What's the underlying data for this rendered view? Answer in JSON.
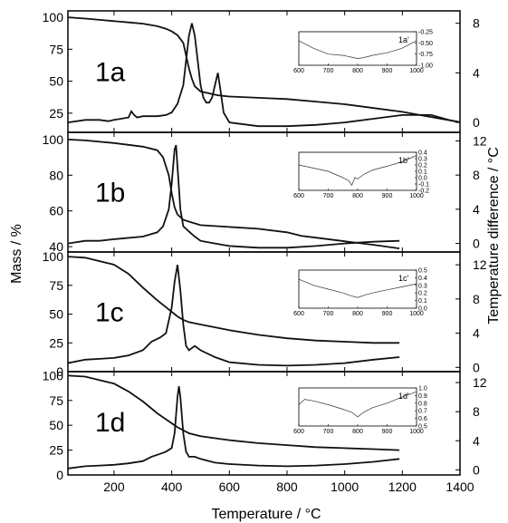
{
  "chart_data": {
    "type": "line",
    "x_axis": {
      "label": "Temperature / °C",
      "range": [
        40,
        1400
      ],
      "ticks": [
        "200",
        "400",
        "600",
        "800",
        "1000",
        "1200",
        "1400"
      ],
      "tick_values": [
        200,
        400,
        600,
        800,
        1000,
        1200,
        1400
      ]
    },
    "y_left_label": "Mass / %",
    "y_right_label": "Temperature difference / °C",
    "panels": [
      {
        "label": "1a",
        "inset_label": "1a'",
        "left_ylim": [
          10,
          105
        ],
        "left_ticks": [
          100,
          75,
          50,
          25
        ],
        "left_tick_labels": [
          "100",
          "75",
          "50",
          "25"
        ],
        "right_ylim": [
          -0.8,
          9
        ],
        "right_ticks": [
          8,
          4,
          0
        ],
        "right_tick_labels": [
          "8",
          "4",
          "0"
        ],
        "mass": {
          "x": [
            40,
            100,
            150,
            200,
            250,
            300,
            350,
            380,
            400,
            420,
            440,
            460,
            470,
            480,
            500,
            540,
            560,
            580,
            600,
            700,
            800,
            900,
            1000,
            1100,
            1200,
            1300,
            1400
          ],
          "y": [
            100,
            99,
            98,
            97,
            96,
            95,
            93,
            91,
            89,
            86,
            80,
            60,
            52,
            46,
            42,
            40,
            39,
            38.5,
            38,
            37,
            36,
            34,
            32,
            29,
            26,
            22,
            18
          ]
        },
        "dta": {
          "x": [
            40,
            100,
            150,
            180,
            200,
            250,
            260,
            270,
            280,
            300,
            350,
            380,
            400,
            420,
            440,
            450,
            460,
            470,
            480,
            490,
            500,
            510,
            520,
            530,
            540,
            550,
            560,
            570,
            580,
            600,
            700,
            800,
            900,
            1000,
            1100,
            1200,
            1300,
            1360,
            1400
          ],
          "y": [
            0,
            0.2,
            0.2,
            0.1,
            0.2,
            0.4,
            0.9,
            0.6,
            0.4,
            0.5,
            0.5,
            0.6,
            0.8,
            1.5,
            3,
            5,
            7,
            8,
            7,
            5,
            3,
            2,
            1.6,
            1.6,
            2,
            3,
            4,
            2.5,
            0.8,
            0,
            -0.3,
            -0.3,
            -0.2,
            0,
            0.3,
            0.6,
            0.6,
            0.2,
            0
          ]
        },
        "inset": {
          "xlim": [
            600,
            1000
          ],
          "ylim": [
            -1.0,
            -0.25
          ],
          "x_ticks": [
            "600",
            "700",
            "800",
            "900",
            "1000"
          ],
          "x_tick_values": [
            600,
            700,
            800,
            900,
            1000
          ],
          "y_ticks": [
            "-0.25",
            "-0.50",
            "-0.75",
            "-1.00"
          ],
          "y_tick_values": [
            -0.25,
            -0.5,
            -0.75,
            -1.0
          ],
          "x": [
            600,
            650,
            700,
            750,
            780,
            800,
            820,
            850,
            900,
            950,
            1000
          ],
          "y": [
            -0.45,
            -0.62,
            -0.75,
            -0.78,
            -0.82,
            -0.85,
            -0.83,
            -0.78,
            -0.72,
            -0.62,
            -0.45
          ]
        }
      },
      {
        "label": "1b",
        "inset_label": "1b'",
        "left_ylim": [
          37,
          104
        ],
        "left_ticks": [
          100,
          80,
          60,
          40
        ],
        "left_tick_labels": [
          "100",
          "80",
          "60",
          "40"
        ],
        "right_ylim": [
          -1,
          13
        ],
        "right_ticks": [
          12,
          8,
          4,
          0
        ],
        "right_tick_labels": [
          "12",
          "8",
          "4",
          "0"
        ],
        "mass": {
          "x": [
            40,
            100,
            200,
            300,
            350,
            370,
            390,
            400,
            410,
            420,
            440,
            460,
            500,
            600,
            700,
            800,
            850,
            900,
            1000,
            1100,
            1190
          ],
          "y": [
            100,
            99.5,
            98,
            96,
            94,
            90,
            80,
            70,
            62,
            58,
            55,
            54,
            52,
            51,
            50,
            48,
            46,
            45,
            43,
            41,
            39
          ]
        },
        "dta": {
          "x": [
            40,
            100,
            150,
            200,
            300,
            350,
            370,
            390,
            400,
            410,
            415,
            420,
            430,
            440,
            460,
            480,
            500,
            550,
            600,
            700,
            800,
            900,
            1000,
            1100,
            1190
          ],
          "y": [
            0,
            0.3,
            0.3,
            0.5,
            0.8,
            1.3,
            2,
            4,
            7,
            11,
            11.5,
            9,
            4,
            2,
            1.4,
            0.8,
            0.3,
            0,
            -0.3,
            -0.5,
            -0.5,
            -0.3,
            0,
            0.2,
            0.3
          ]
        },
        "inset": {
          "xlim": [
            600,
            1000
          ],
          "ylim": [
            -0.2,
            0.4
          ],
          "x_ticks": [
            "600",
            "700",
            "800",
            "900",
            "1000"
          ],
          "x_tick_values": [
            600,
            700,
            800,
            900,
            1000
          ],
          "y_ticks": [
            "0.4",
            "0.3",
            "0.2",
            "0.1",
            "0.0",
            "-0.1",
            "-0.2"
          ],
          "y_tick_values": [
            0.4,
            0.3,
            0.2,
            0.1,
            0.0,
            -0.1,
            -0.2
          ],
          "x": [
            600,
            650,
            700,
            750,
            770,
            780,
            790,
            800,
            820,
            850,
            900,
            950,
            1000
          ],
          "y": [
            0.2,
            0.15,
            0.1,
            0.0,
            -0.05,
            -0.12,
            0.0,
            -0.02,
            0.05,
            0.12,
            0.18,
            0.25,
            0.35
          ]
        }
      },
      {
        "label": "1c",
        "inset_label": "1c'",
        "left_ylim": [
          0,
          104
        ],
        "left_ticks": [
          100,
          75,
          50,
          25,
          0
        ],
        "left_tick_labels": [
          "100",
          "75",
          "50",
          "25",
          "0"
        ],
        "right_ylim": [
          -0.5,
          13.5
        ],
        "right_ticks": [
          12,
          8,
          4,
          0
        ],
        "right_tick_labels": [
          "12",
          "8",
          "4",
          "0"
        ],
        "mass": {
          "x": [
            40,
            100,
            200,
            250,
            300,
            350,
            380,
            400,
            420,
            440,
            460,
            500,
            600,
            700,
            800,
            900,
            1000,
            1100,
            1190
          ],
          "y": [
            100,
            99,
            93,
            85,
            73,
            62,
            56,
            52,
            48,
            45,
            43,
            41,
            36,
            32,
            29,
            27,
            26,
            25,
            25
          ]
        },
        "dta": {
          "x": [
            40,
            100,
            150,
            200,
            250,
            300,
            330,
            360,
            380,
            400,
            410,
            420,
            430,
            440,
            450,
            460,
            480,
            500,
            550,
            600,
            700,
            800,
            900,
            1000,
            1100,
            1190
          ],
          "y": [
            0.5,
            0.9,
            1,
            1.1,
            1.4,
            2,
            3,
            3.5,
            4,
            7,
            10,
            12,
            9,
            5,
            2.5,
            2,
            2.5,
            2,
            1.2,
            0.6,
            0.3,
            0.2,
            0.3,
            0.5,
            0.9,
            1.2
          ]
        },
        "inset": {
          "xlim": [
            600,
            1000
          ],
          "ylim": [
            0.0,
            0.5
          ],
          "x_ticks": [
            "600",
            "700",
            "800",
            "900",
            "1000"
          ],
          "x_tick_values": [
            600,
            700,
            800,
            900,
            1000
          ],
          "y_ticks": [
            "0.5",
            "0.4",
            "0.3",
            "0.2",
            "0.1",
            "0.0"
          ],
          "y_tick_values": [
            0.5,
            0.4,
            0.3,
            0.2,
            0.1,
            0.0
          ],
          "x": [
            600,
            650,
            700,
            750,
            780,
            800,
            830,
            850,
            900,
            950,
            1000
          ],
          "y": [
            0.38,
            0.3,
            0.25,
            0.2,
            0.16,
            0.14,
            0.18,
            0.2,
            0.24,
            0.28,
            0.32
          ]
        }
      },
      {
        "label": "1d",
        "inset_label": "1d'",
        "left_ylim": [
          0,
          104
        ],
        "left_ticks": [
          100,
          75,
          50,
          25,
          0
        ],
        "left_tick_labels": [
          "100",
          "75",
          "50",
          "25",
          "0"
        ],
        "right_ylim": [
          -0.7,
          13.5
        ],
        "right_ticks": [
          12,
          8,
          4,
          0
        ],
        "right_tick_labels": [
          "12",
          "8",
          "4",
          "0"
        ],
        "mass": {
          "x": [
            40,
            100,
            200,
            250,
            300,
            350,
            380,
            400,
            420,
            440,
            460,
            500,
            600,
            700,
            800,
            900,
            1000,
            1100,
            1190
          ],
          "y": [
            100,
            99,
            92,
            84,
            74,
            62,
            56,
            52,
            48,
            45,
            42,
            39,
            35,
            32,
            30,
            28,
            27,
            26,
            25
          ]
        },
        "dta": {
          "x": [
            40,
            100,
            150,
            200,
            250,
            300,
            330,
            360,
            380,
            400,
            410,
            420,
            425,
            430,
            440,
            450,
            460,
            480,
            500,
            550,
            600,
            700,
            800,
            900,
            1000,
            1100,
            1190
          ],
          "y": [
            0.2,
            0.5,
            0.6,
            0.7,
            0.9,
            1.2,
            1.8,
            2.2,
            2.5,
            3,
            5,
            10,
            11.5,
            10,
            5,
            2.5,
            1.8,
            1.8,
            1.5,
            1,
            0.8,
            0.6,
            0.5,
            0.6,
            0.8,
            1.1,
            1.5
          ]
        },
        "inset": {
          "xlim": [
            600,
            1000
          ],
          "ylim": [
            0.5,
            1.0
          ],
          "x_ticks": [
            "600",
            "700",
            "800",
            "900",
            "1000"
          ],
          "x_tick_values": [
            600,
            700,
            800,
            900,
            1000
          ],
          "y_ticks": [
            "1.0",
            "0.9",
            "0.8",
            "0.7",
            "0.6",
            "0.5"
          ],
          "y_tick_values": [
            1.0,
            0.9,
            0.8,
            0.7,
            0.6,
            0.5
          ],
          "x": [
            600,
            620,
            650,
            700,
            750,
            780,
            800,
            820,
            850,
            900,
            950,
            1000
          ],
          "y": [
            0.78,
            0.85,
            0.83,
            0.78,
            0.72,
            0.68,
            0.62,
            0.68,
            0.74,
            0.8,
            0.88,
            0.95
          ]
        }
      }
    ]
  }
}
